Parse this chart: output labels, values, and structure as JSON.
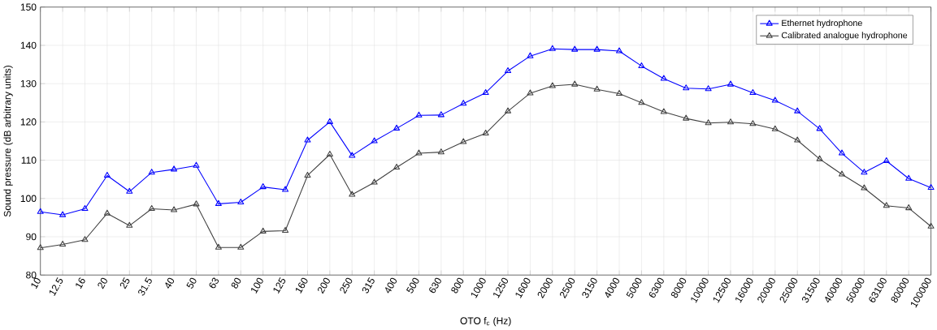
{
  "chart_data": {
    "type": "line",
    "xlabel": "OTO f$_{c}$ (Hz)",
    "ylabel": "Sound pressure (dB arbitrary units)",
    "categories": [
      "10",
      "12.5",
      "16",
      "20",
      "25",
      "31.5",
      "40",
      "50",
      "63",
      "80",
      "100",
      "125",
      "160",
      "200",
      "250",
      "315",
      "400",
      "500",
      "630",
      "800",
      "1000",
      "1250",
      "1600",
      "2000",
      "2500",
      "3150",
      "4000",
      "5000",
      "6300",
      "8000",
      "10000",
      "12500",
      "16000",
      "20000",
      "25000",
      "31500",
      "40000",
      "50000",
      "63100",
      "80000",
      "100000"
    ],
    "series": [
      {
        "name": "Ethernet hydrophone",
        "color": "#0000ff",
        "values": [
          96.5,
          95.7,
          97.3,
          106,
          101.8,
          106.8,
          107.6,
          108.6,
          98.6,
          99,
          103,
          102.3,
          115.2,
          120,
          111.2,
          115,
          118.3,
          121.7,
          121.8,
          124.8,
          127.6,
          133.3,
          137.2,
          139.1,
          138.9,
          138.9,
          138.5,
          134.6,
          131.3,
          128.8,
          128.6,
          129.8,
          127.6,
          125.6,
          122.8,
          118.2,
          111.8,
          106.8,
          109.8,
          105.2,
          102.8
        ]
      },
      {
        "name": "Calibrated analogue hydrophone",
        "color": "#404040",
        "values": [
          87.1,
          88,
          89.2,
          96.1,
          92.9,
          97.3,
          97,
          98.5,
          87.2,
          87.2,
          91.4,
          91.6,
          106,
          111.5,
          101,
          104.2,
          108.1,
          111.8,
          112.1,
          114.8,
          117,
          122.8,
          127.5,
          129.4,
          129.8,
          128.5,
          127.4,
          125,
          122.6,
          120.9,
          119.7,
          119.9,
          119.5,
          118.1,
          115.2,
          110.3,
          106.3,
          102.7,
          98.1,
          97.5,
          92.7
        ]
      }
    ],
    "ylim": [
      80,
      150
    ],
    "yticks": [
      80,
      90,
      100,
      110,
      120,
      130,
      140,
      150
    ],
    "grid": true,
    "legend": "top right",
    "marker": "triangle",
    "line_style": "solid"
  }
}
